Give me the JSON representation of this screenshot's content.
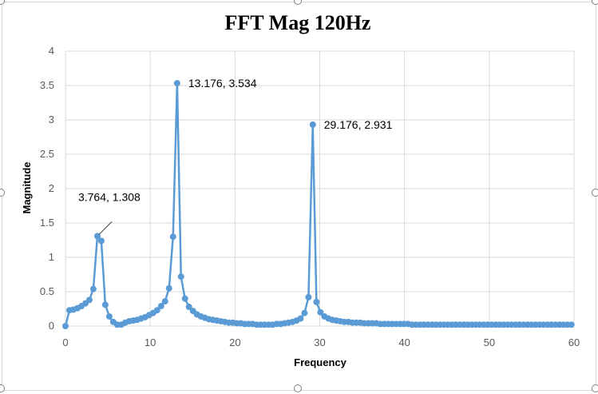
{
  "chart_data": {
    "type": "scatter",
    "title": "FFT Mag 120Hz",
    "xlabel": "Frequency",
    "ylabel": "Magnitude",
    "xlim": [
      0,
      60
    ],
    "ylim": [
      0,
      4
    ],
    "xticks": [
      0,
      10,
      20,
      30,
      40,
      50,
      60
    ],
    "yticks": [
      "0",
      "0.5",
      "1",
      "1.5",
      "2",
      "2.5",
      "3",
      "3.5",
      "4"
    ],
    "grid": true,
    "legend": "none",
    "line_color": "#5b9bd5",
    "series": [
      {
        "x": [
          0.0,
          0.47,
          0.94,
          1.41,
          1.88,
          2.35,
          2.82,
          3.29,
          3.764,
          4.23,
          4.7,
          5.17,
          5.64,
          6.11,
          6.58,
          7.05,
          7.52,
          7.99,
          8.46,
          8.93,
          9.4,
          9.87,
          10.34,
          10.81,
          11.28,
          11.75,
          12.22,
          12.69,
          13.176,
          13.63,
          14.1,
          14.57,
          15.04,
          15.51,
          15.98,
          16.45,
          16.92,
          17.39,
          17.86,
          18.33,
          18.8,
          19.27,
          19.74,
          20.21,
          20.68,
          21.15,
          21.62,
          22.09,
          22.56,
          23.03,
          23.5,
          23.97,
          24.44,
          24.91,
          25.38,
          25.85,
          26.32,
          26.79,
          27.26,
          27.73,
          28.2,
          28.67,
          29.176,
          29.61,
          30.08,
          30.55,
          31.02,
          31.49,
          31.96,
          32.43,
          32.9,
          33.37,
          33.84,
          34.31,
          34.78,
          35.25,
          35.72,
          36.19,
          36.66,
          37.13,
          37.6,
          38.07,
          38.54,
          39.01,
          39.48,
          39.95,
          40.42,
          40.89,
          41.36,
          41.83,
          42.3,
          42.77,
          43.24,
          43.71,
          44.18,
          44.65,
          45.12,
          45.59,
          46.06,
          46.53,
          47.0,
          47.47,
          47.94,
          48.41,
          48.88,
          49.35,
          49.82,
          50.29,
          50.76,
          51.23,
          51.7,
          52.17,
          52.64,
          53.11,
          53.58,
          54.05,
          54.52,
          54.99,
          55.46,
          55.93,
          56.4,
          56.87,
          57.34,
          57.81,
          58.28,
          58.75,
          59.22,
          59.69
        ],
        "y": [
          0.0,
          0.23,
          0.24,
          0.26,
          0.29,
          0.33,
          0.38,
          0.54,
          1.308,
          1.24,
          0.31,
          0.14,
          0.06,
          0.02,
          0.02,
          0.05,
          0.07,
          0.08,
          0.09,
          0.11,
          0.13,
          0.16,
          0.19,
          0.23,
          0.29,
          0.36,
          0.55,
          1.3,
          3.534,
          0.72,
          0.4,
          0.28,
          0.22,
          0.17,
          0.14,
          0.12,
          0.1,
          0.09,
          0.08,
          0.07,
          0.06,
          0.05,
          0.05,
          0.04,
          0.04,
          0.03,
          0.03,
          0.03,
          0.02,
          0.02,
          0.02,
          0.02,
          0.02,
          0.03,
          0.03,
          0.04,
          0.05,
          0.06,
          0.08,
          0.11,
          0.19,
          0.42,
          2.931,
          0.35,
          0.2,
          0.14,
          0.11,
          0.09,
          0.08,
          0.07,
          0.06,
          0.06,
          0.05,
          0.05,
          0.05,
          0.04,
          0.04,
          0.04,
          0.04,
          0.03,
          0.03,
          0.03,
          0.03,
          0.03,
          0.03,
          0.03,
          0.03,
          0.02,
          0.02,
          0.02,
          0.02,
          0.02,
          0.02,
          0.02,
          0.02,
          0.02,
          0.02,
          0.02,
          0.02,
          0.02,
          0.02,
          0.02,
          0.02,
          0.02,
          0.02,
          0.02,
          0.02,
          0.02,
          0.02,
          0.02,
          0.02,
          0.02,
          0.02,
          0.02,
          0.02,
          0.02,
          0.02,
          0.02,
          0.02,
          0.02,
          0.02,
          0.02,
          0.02,
          0.02,
          0.02,
          0.02,
          0.02,
          0.02
        ]
      }
    ],
    "annotations": [
      {
        "text": "3.764, 1.308",
        "x": 3.764,
        "y": 1.308,
        "position": "above-right",
        "leader": true
      },
      {
        "text": "13.176, 3.534",
        "x": 13.176,
        "y": 3.534,
        "position": "right"
      },
      {
        "text": "29.176, 2.931",
        "x": 29.176,
        "y": 2.931,
        "position": "right"
      }
    ]
  }
}
